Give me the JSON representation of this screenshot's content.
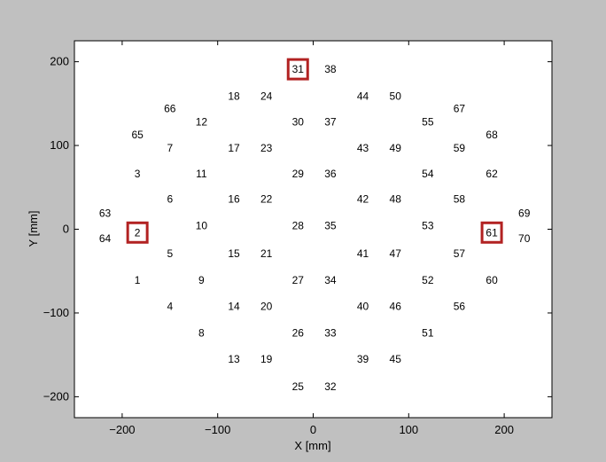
{
  "chart_data": {
    "type": "scatter",
    "title": "",
    "xlabel": "X [mm]",
    "ylabel": "Y [mm]",
    "xlim": [
      -250,
      250
    ],
    "ylim": [
      -225,
      225
    ],
    "xticks": [
      -200,
      -100,
      0,
      100,
      200
    ],
    "yticks": [
      -200,
      -100,
      0,
      100,
      200
    ],
    "grid": false,
    "legend": "none",
    "highlight_color": "#b22222",
    "points": [
      {
        "label": "1",
        "x": -184,
        "y": -61
      },
      {
        "label": "2",
        "x": -184,
        "y": -4
      },
      {
        "label": "3",
        "x": -184,
        "y": 66
      },
      {
        "label": "4",
        "x": -150,
        "y": -92
      },
      {
        "label": "5",
        "x": -150,
        "y": -29
      },
      {
        "label": "6",
        "x": -150,
        "y": 36
      },
      {
        "label": "7",
        "x": -150,
        "y": 97
      },
      {
        "label": "8",
        "x": -117,
        "y": -124
      },
      {
        "label": "9",
        "x": -117,
        "y": -61
      },
      {
        "label": "10",
        "x": -117,
        "y": 4
      },
      {
        "label": "11",
        "x": -117,
        "y": 66
      },
      {
        "label": "12",
        "x": -117,
        "y": 128
      },
      {
        "label": "13",
        "x": -83,
        "y": -155
      },
      {
        "label": "14",
        "x": -83,
        "y": -92
      },
      {
        "label": "15",
        "x": -83,
        "y": -29
      },
      {
        "label": "16",
        "x": -83,
        "y": 36
      },
      {
        "label": "17",
        "x": -83,
        "y": 97
      },
      {
        "label": "18",
        "x": -83,
        "y": 159
      },
      {
        "label": "19",
        "x": -49,
        "y": -155
      },
      {
        "label": "20",
        "x": -49,
        "y": -92
      },
      {
        "label": "21",
        "x": -49,
        "y": -29
      },
      {
        "label": "22",
        "x": -49,
        "y": 36
      },
      {
        "label": "23",
        "x": -49,
        "y": 97
      },
      {
        "label": "24",
        "x": -49,
        "y": 159
      },
      {
        "label": "25",
        "x": -16,
        "y": -188
      },
      {
        "label": "26",
        "x": -16,
        "y": -124
      },
      {
        "label": "27",
        "x": -16,
        "y": -61
      },
      {
        "label": "28",
        "x": -16,
        "y": 4
      },
      {
        "label": "29",
        "x": -16,
        "y": 66
      },
      {
        "label": "30",
        "x": -16,
        "y": 128
      },
      {
        "label": "31",
        "x": -16,
        "y": 191
      },
      {
        "label": "32",
        "x": 18,
        "y": -188
      },
      {
        "label": "33",
        "x": 18,
        "y": -124
      },
      {
        "label": "34",
        "x": 18,
        "y": -61
      },
      {
        "label": "35",
        "x": 18,
        "y": 4
      },
      {
        "label": "36",
        "x": 18,
        "y": 66
      },
      {
        "label": "37",
        "x": 18,
        "y": 128
      },
      {
        "label": "38",
        "x": 18,
        "y": 191
      },
      {
        "label": "39",
        "x": 52,
        "y": -155
      },
      {
        "label": "40",
        "x": 52,
        "y": -92
      },
      {
        "label": "41",
        "x": 52,
        "y": -29
      },
      {
        "label": "42",
        "x": 52,
        "y": 36
      },
      {
        "label": "43",
        "x": 52,
        "y": 97
      },
      {
        "label": "44",
        "x": 52,
        "y": 159
      },
      {
        "label": "45",
        "x": 86,
        "y": -155
      },
      {
        "label": "46",
        "x": 86,
        "y": -92
      },
      {
        "label": "47",
        "x": 86,
        "y": -29
      },
      {
        "label": "48",
        "x": 86,
        "y": 36
      },
      {
        "label": "49",
        "x": 86,
        "y": 97
      },
      {
        "label": "50",
        "x": 86,
        "y": 159
      },
      {
        "label": "51",
        "x": 120,
        "y": -124
      },
      {
        "label": "52",
        "x": 120,
        "y": -61
      },
      {
        "label": "53",
        "x": 120,
        "y": 4
      },
      {
        "label": "54",
        "x": 120,
        "y": 66
      },
      {
        "label": "55",
        "x": 120,
        "y": 128
      },
      {
        "label": "56",
        "x": 153,
        "y": -92
      },
      {
        "label": "57",
        "x": 153,
        "y": -29
      },
      {
        "label": "58",
        "x": 153,
        "y": 36
      },
      {
        "label": "59",
        "x": 153,
        "y": 97
      },
      {
        "label": "60",
        "x": 187,
        "y": -61
      },
      {
        "label": "61",
        "x": 187,
        "y": -4
      },
      {
        "label": "62",
        "x": 187,
        "y": 66
      },
      {
        "label": "63",
        "x": -218,
        "y": 19
      },
      {
        "label": "64",
        "x": -218,
        "y": -11
      },
      {
        "label": "65",
        "x": -184,
        "y": 113
      },
      {
        "label": "66",
        "x": -150,
        "y": 144
      },
      {
        "label": "67",
        "x": 153,
        "y": 144
      },
      {
        "label": "68",
        "x": 187,
        "y": 113
      },
      {
        "label": "69",
        "x": 221,
        "y": 19
      },
      {
        "label": "70",
        "x": 221,
        "y": -11
      }
    ],
    "highlighted": [
      "2",
      "31",
      "61"
    ]
  }
}
